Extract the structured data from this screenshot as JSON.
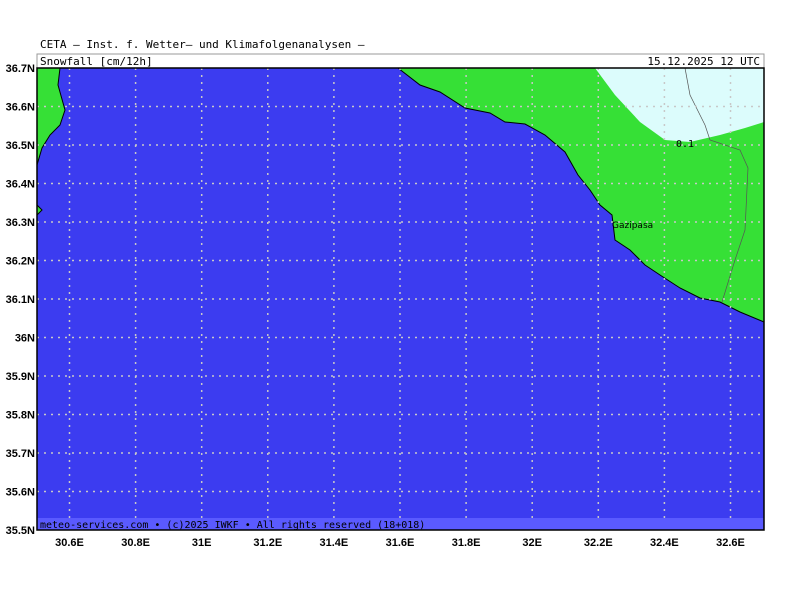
{
  "header": {
    "source": "CETA – Inst. f. Wetter– und Klimafolgenanalysen –",
    "parameter": "Snowfall [cm/12h]",
    "valid_time": "15.12.2025 12 UTC"
  },
  "map": {
    "lat_labels": [
      "36.7N",
      "36.6N",
      "36.5N",
      "36.4N",
      "36.3N",
      "36.2N",
      "36.1N",
      "36N",
      "35.9N",
      "35.8N",
      "35.7N",
      "35.6N",
      "35.5N"
    ],
    "lon_labels": [
      "30.6E",
      "30.8E",
      "31E",
      "31.2E",
      "31.4E",
      "31.6E",
      "31.8E",
      "32E",
      "32.2E",
      "32.4E",
      "32.6E"
    ],
    "contour_label": "0.1",
    "city": "Gazipasa"
  },
  "footer": {
    "copyright": "meteo-services.com • (c)2025 IWKF • All rights reserved (18+018)"
  }
}
